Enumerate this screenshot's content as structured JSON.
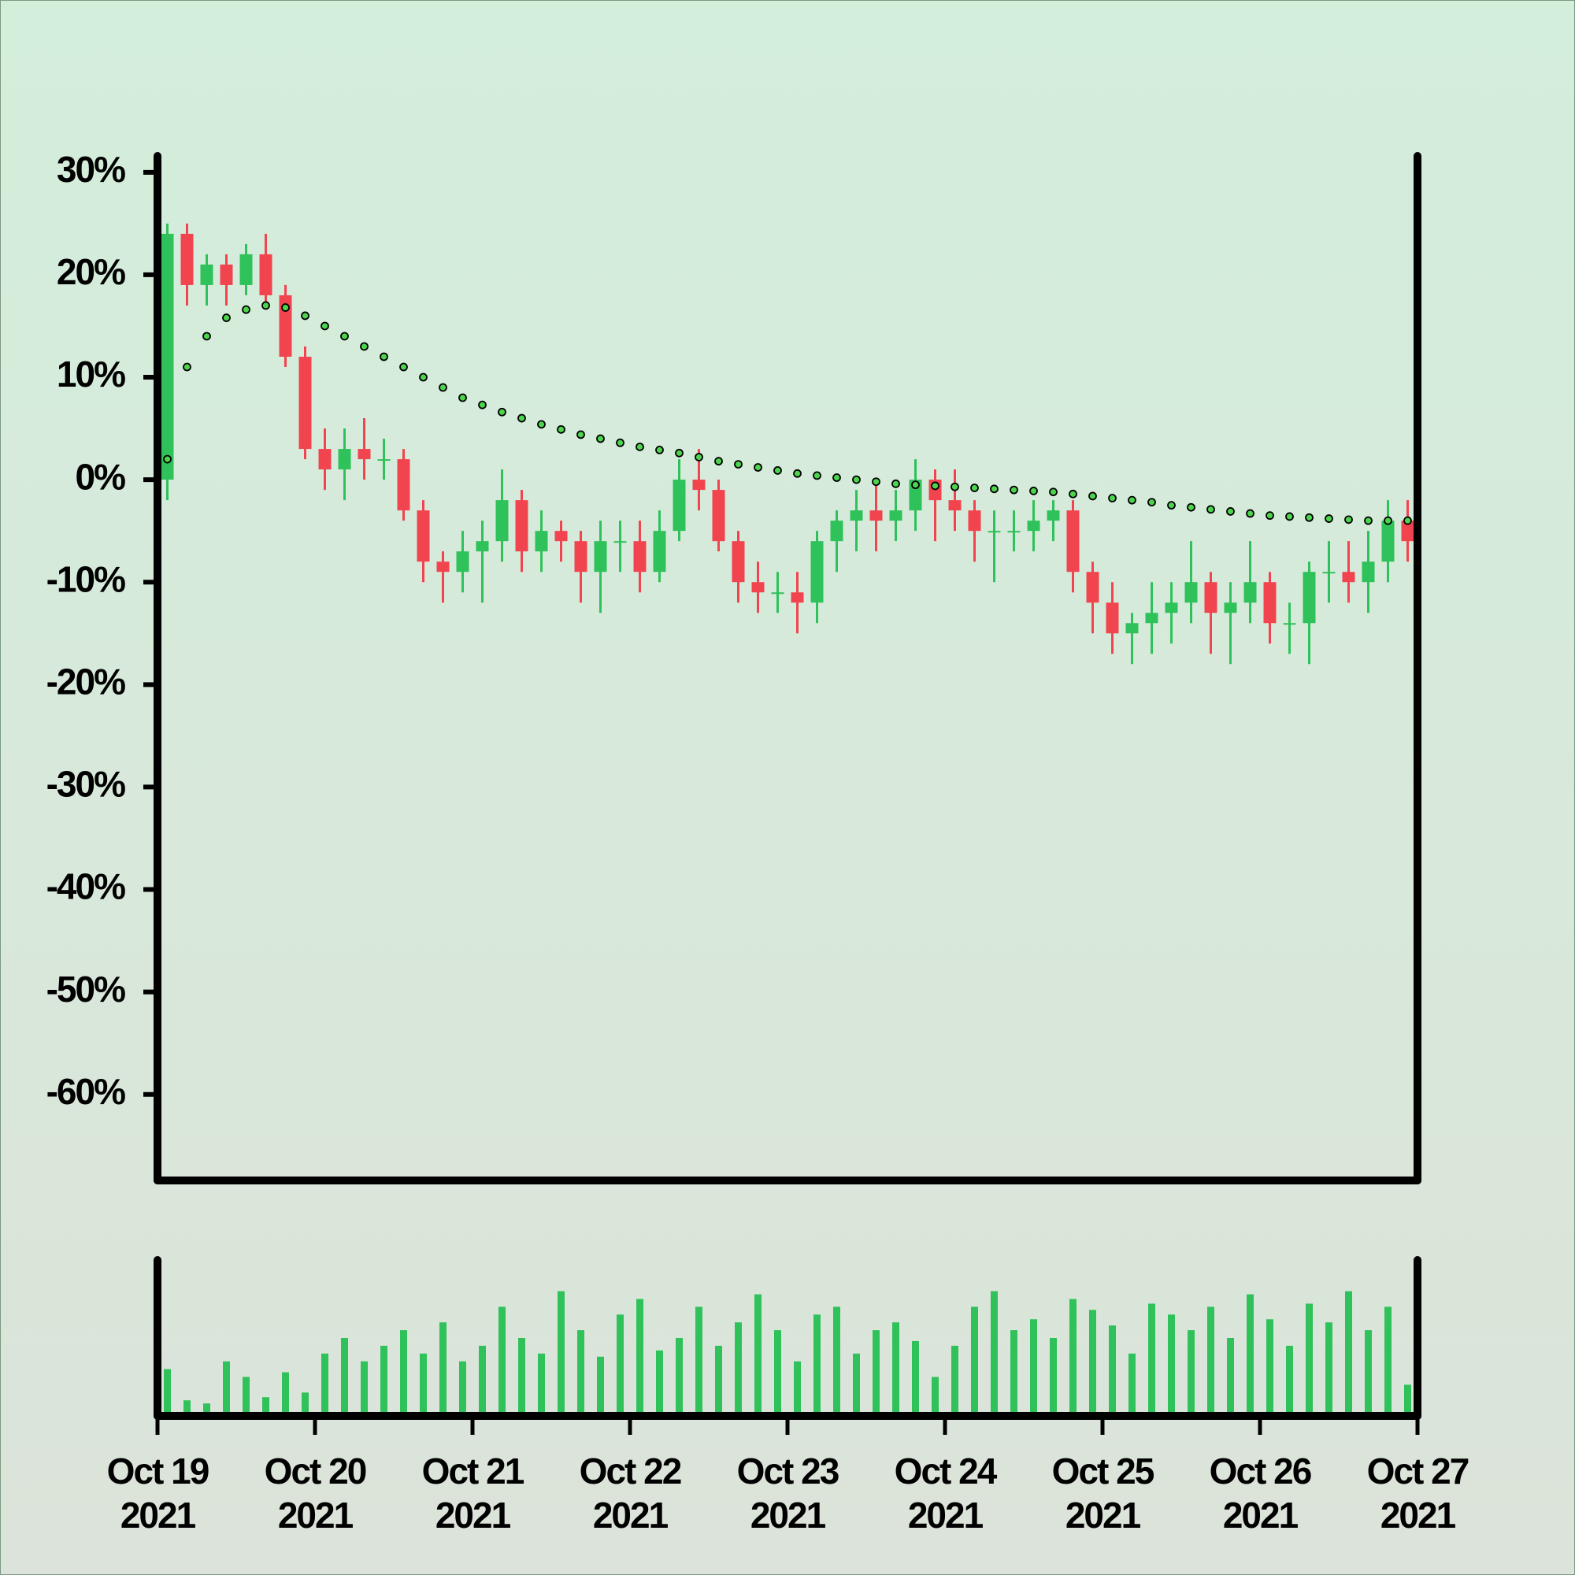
{
  "chart_data": {
    "type": "candlestick",
    "x": [
      0.0625,
      0.1875,
      0.3125,
      0.4375,
      0.5625,
      0.6875,
      0.8125,
      0.9375,
      1.0625,
      1.1875,
      1.3125,
      1.4375,
      1.5625,
      1.6875,
      1.8125,
      1.9375,
      2.0625,
      2.1875,
      2.3125,
      2.4375,
      2.5625,
      2.6875,
      2.8125,
      2.9375,
      3.0625,
      3.1875,
      3.3125,
      3.4375,
      3.5625,
      3.6875,
      3.8125,
      3.9375,
      4.0625,
      4.1875,
      4.3125,
      4.4375,
      4.5625,
      4.6875,
      4.8125,
      4.9375,
      5.0625,
      5.1875,
      5.3125,
      5.4375,
      5.5625,
      5.6875,
      5.8125,
      5.9375,
      6.0625,
      6.1875,
      6.3125,
      6.4375,
      6.5625,
      6.6875,
      6.8125,
      6.9375,
      7.0625,
      7.1875,
      7.3125,
      7.4375,
      7.5625,
      7.6875,
      7.8125,
      7.9375
    ],
    "open": [
      0,
      24,
      19,
      21,
      19,
      22,
      18,
      12,
      3,
      1,
      3,
      2,
      2,
      -3,
      -8,
      -9,
      -7,
      -6,
      -2,
      -7,
      -5,
      -6,
      -9,
      -6,
      -6,
      -9,
      -5,
      0,
      -1,
      -6,
      -10,
      -11,
      -11,
      -12,
      -6,
      -4,
      -3,
      -4,
      -3,
      0,
      -2,
      -3,
      -5,
      -5,
      -5,
      -4,
      -3,
      -9,
      -12,
      -15,
      -14,
      -13,
      -12,
      -10,
      -13,
      -12,
      -10,
      -14,
      -14,
      -9,
      -9,
      -10,
      -8,
      -4
    ],
    "high": [
      25,
      25,
      22,
      22,
      23,
      24,
      19,
      13,
      5,
      5,
      6,
      4,
      3,
      -2,
      -7,
      -5,
      -4,
      1,
      -1,
      -3,
      -4,
      -5,
      -4,
      -4,
      -4,
      -3,
      2,
      3,
      0,
      -5,
      -8,
      -9,
      -9,
      -5,
      -3,
      -1,
      0,
      -1,
      2,
      1,
      1,
      -2,
      -3,
      -3,
      -2,
      -2,
      -2,
      -8,
      -10,
      -13,
      -10,
      -10,
      -6,
      -9,
      -10,
      -6,
      -9,
      -12,
      -8,
      -6,
      -6,
      -5,
      -2,
      -2
    ],
    "low": [
      -2,
      17,
      17,
      17,
      18,
      17,
      11,
      2,
      -1,
      -2,
      0,
      0,
      -4,
      -10,
      -12,
      -11,
      -12,
      -8,
      -9,
      -9,
      -8,
      -12,
      -13,
      -9,
      -11,
      -10,
      -6,
      -3,
      -7,
      -12,
      -13,
      -13,
      -15,
      -14,
      -9,
      -7,
      -7,
      -6,
      -5,
      -6,
      -5,
      -8,
      -10,
      -7,
      -7,
      -6,
      -11,
      -15,
      -17,
      -18,
      -17,
      -16,
      -14,
      -17,
      -18,
      -14,
      -16,
      -17,
      -18,
      -12,
      -12,
      -13,
      -10,
      -8
    ],
    "close": [
      24,
      19,
      21,
      19,
      22,
      18,
      12,
      3,
      1,
      3,
      2,
      2,
      -3,
      -8,
      -9,
      -7,
      -6,
      -2,
      -7,
      -5,
      -6,
      -9,
      -6,
      -6,
      -9,
      -5,
      0,
      -1,
      -6,
      -10,
      -11,
      -11,
      -12,
      -6,
      -4,
      -3,
      -4,
      -3,
      0,
      -2,
      -3,
      -5,
      -5,
      -5,
      -4,
      -3,
      -9,
      -12,
      -15,
      -14,
      -13,
      -12,
      -10,
      -13,
      -12,
      -10,
      -14,
      -14,
      -9,
      -9,
      -10,
      -8,
      -4,
      -6
    ],
    "ma": [
      2,
      11,
      14,
      15.8,
      16.6,
      17,
      16.8,
      16,
      15,
      14,
      13,
      12,
      11,
      10,
      9,
      8,
      7.3,
      6.6,
      6,
      5.4,
      4.9,
      4.4,
      4,
      3.6,
      3.2,
      2.9,
      2.6,
      2.2,
      1.8,
      1.5,
      1.2,
      0.9,
      0.6,
      0.4,
      0.2,
      0,
      -0.2,
      -0.4,
      -0.5,
      -0.6,
      -0.7,
      -0.8,
      -0.9,
      -1,
      -1.1,
      -1.2,
      -1.4,
      -1.6,
      -1.8,
      -2,
      -2.2,
      -2.5,
      -2.7,
      -2.9,
      -3.1,
      -3.3,
      -3.5,
      -3.6,
      -3.7,
      -3.8,
      -3.9,
      -4,
      -4,
      -4
    ],
    "volume": [
      30,
      10,
      8,
      35,
      25,
      12,
      28,
      15,
      40,
      50,
      35,
      45,
      55,
      40,
      60,
      35,
      45,
      70,
      50,
      40,
      80,
      55,
      38,
      65,
      75,
      42,
      50,
      70,
      45,
      60,
      78,
      55,
      35,
      65,
      70,
      40,
      55,
      60,
      48,
      25,
      45,
      70,
      80,
      55,
      62,
      50,
      75,
      68,
      58,
      40,
      72,
      65,
      55,
      70,
      50,
      78,
      62,
      45,
      72,
      60,
      80,
      55,
      70,
      20
    ],
    "up_color": "#2fc15a",
    "down_color": "#f2444f",
    "volume_color": "#2fc15a",
    "ma_color": "#4cd44c",
    "xlim": [
      0,
      8
    ],
    "xticks": [
      {
        "value": 0,
        "label": "Oct 19\n2021"
      },
      {
        "value": 1,
        "label": "Oct 20\n2021"
      },
      {
        "value": 2,
        "label": "Oct 21\n2021"
      },
      {
        "value": 3,
        "label": "Oct 22\n2021"
      },
      {
        "value": 4,
        "label": "Oct 23\n2021"
      },
      {
        "value": 5,
        "label": "Oct 24\n2021"
      },
      {
        "value": 6,
        "label": "Oct 25\n2021"
      },
      {
        "value": 7,
        "label": "Oct 26\n2021"
      },
      {
        "value": 8,
        "label": "Oct 27\n2021"
      }
    ],
    "ylim": [
      -68.4,
      31.6
    ],
    "yticks": [
      {
        "value": 30,
        "label": "30%"
      },
      {
        "value": 20,
        "label": "20%"
      },
      {
        "value": 10,
        "label": "10%"
      },
      {
        "value": 0,
        "label": "0%"
      },
      {
        "value": -10,
        "label": "-10%"
      },
      {
        "value": -20,
        "label": "-20%"
      },
      {
        "value": -30,
        "label": "-30%"
      },
      {
        "value": -40,
        "label": "-40%"
      },
      {
        "value": -50,
        "label": "-50%"
      },
      {
        "value": -60,
        "label": "-60%"
      }
    ],
    "volume_ylim": [
      0,
      100
    ]
  }
}
